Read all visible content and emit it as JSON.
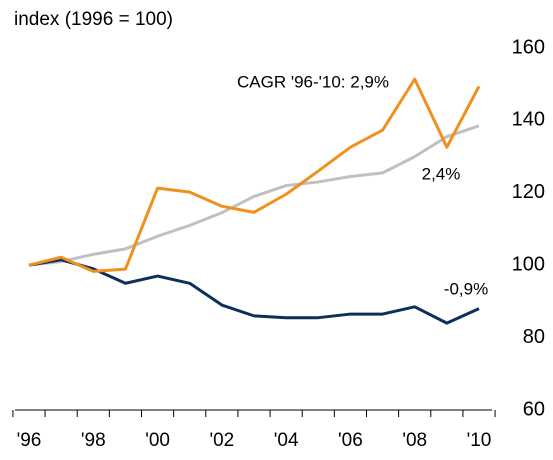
{
  "chart_data": {
    "type": "line",
    "title": "index (1996 = 100)",
    "categories": [
      "'96",
      null,
      "'98",
      null,
      "'00",
      null,
      "'02",
      null,
      "'04",
      null,
      "'06",
      null,
      "'08",
      null,
      "'10"
    ],
    "series": [
      {
        "name": "CAGR '96-'10: 2,9%",
        "color": "#f0901e",
        "values": [
          100,
          102.2,
          98.3,
          98.9,
          121.3,
          120.2,
          116.3,
          114.6,
          119.6,
          126,
          132.6,
          137.3,
          151.4,
          132.6,
          149.4
        ]
      },
      {
        "name": "2,4%",
        "color": "#c0c0c0",
        "values": [
          100,
          101,
          103,
          104.5,
          108,
          111,
          114.5,
          119,
          122,
          123,
          124.5,
          125.5,
          130,
          135.5,
          138.5
        ]
      },
      {
        "name": "-0,9%",
        "color": "#0d2f5a",
        "values": [
          100,
          101.5,
          99,
          95,
          97,
          95,
          89,
          86,
          85.5,
          85.5,
          86.5,
          86.5,
          88.5,
          84,
          88
        ]
      }
    ],
    "ylim": [
      60,
      160
    ],
    "yticks": [
      60,
      80,
      100,
      120,
      140,
      160
    ],
    "grid": false
  }
}
